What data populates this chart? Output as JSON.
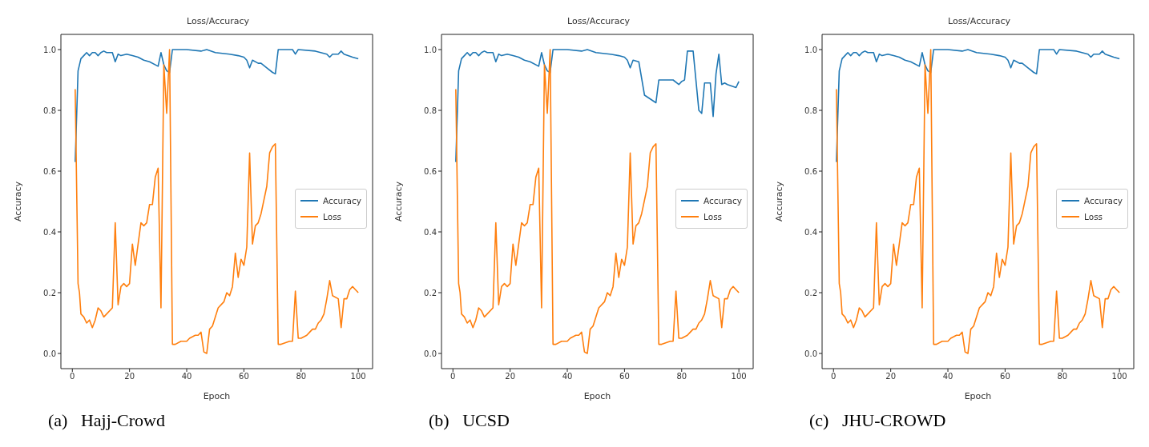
{
  "chart_data": [
    {
      "type": "line",
      "title": "Loss/Accuracy",
      "xlabel": "Epoch",
      "ylabel": "Accuracy",
      "legend": "right",
      "xlim": [
        -4,
        105
      ],
      "ylim": [
        -0.05,
        1.05
      ],
      "xticks": [
        0,
        20,
        40,
        60,
        80,
        100
      ],
      "yticks": [
        {
          "value": 0,
          "label": "0.0"
        },
        {
          "value": 0.2,
          "label": "0.2"
        },
        {
          "value": 0.4,
          "label": "0.4"
        },
        {
          "value": 0.6,
          "label": "0.6"
        },
        {
          "value": 0.8,
          "label": "0.8"
        },
        {
          "value": 1,
          "label": "1.0"
        }
      ],
      "annotations": [
        "(a)   Hajj-Crowd"
      ],
      "series": [
        {
          "name": "Accuracy",
          "color": "#1f77b4",
          "x": [
            1,
            2,
            3,
            4,
            5,
            6,
            7,
            8,
            9,
            10,
            11,
            12,
            14,
            15,
            16,
            17,
            19,
            21,
            23,
            25,
            27,
            30,
            31,
            32,
            33,
            34,
            35,
            40,
            45,
            47,
            50,
            55,
            58,
            60,
            61,
            62,
            63,
            65,
            66,
            68,
            70,
            71,
            72,
            77,
            78,
            79,
            85,
            89,
            90,
            91,
            93,
            94,
            95,
            98,
            100
          ],
          "values": [
            0.63,
            0.93,
            0.97,
            0.98,
            0.99,
            0.98,
            0.99,
            0.99,
            0.98,
            0.99,
            0.995,
            0.99,
            0.99,
            0.96,
            0.985,
            0.98,
            0.985,
            0.98,
            0.975,
            0.965,
            0.96,
            0.945,
            0.99,
            0.95,
            0.93,
            0.925,
            1.0,
            1.0,
            0.995,
            1.0,
            0.99,
            0.985,
            0.98,
            0.975,
            0.965,
            0.94,
            0.965,
            0.955,
            0.955,
            0.94,
            0.925,
            0.92,
            1.0,
            1.0,
            0.985,
            1.0,
            0.995,
            0.985,
            0.975,
            0.985,
            0.985,
            0.995,
            0.985,
            0.975,
            0.97
          ]
        },
        {
          "name": "Loss",
          "color": "#ff7f0e",
          "x": [
            1,
            2,
            2.5,
            3,
            4,
            5,
            6,
            7,
            8,
            9,
            10,
            11,
            12,
            14,
            15,
            16,
            17,
            18,
            19,
            20,
            21,
            22,
            23,
            24,
            25,
            26,
            27,
            28,
            29,
            30,
            31,
            32,
            33,
            34,
            35,
            36,
            38,
            40,
            41,
            43,
            44,
            45,
            46,
            47,
            48,
            49,
            51,
            53,
            54,
            55,
            56,
            57,
            58,
            59,
            60,
            61,
            62,
            63,
            64,
            65,
            66,
            68,
            69,
            70,
            71,
            72,
            73,
            76,
            77,
            78,
            79,
            80,
            82,
            83,
            84,
            85,
            86,
            87,
            88,
            89,
            90,
            91,
            93,
            94,
            95,
            96,
            97,
            98,
            99,
            100
          ],
          "values": [
            0.87,
            0.23,
            0.2,
            0.13,
            0.12,
            0.1,
            0.11,
            0.085,
            0.11,
            0.15,
            0.14,
            0.12,
            0.13,
            0.15,
            0.43,
            0.16,
            0.22,
            0.23,
            0.22,
            0.23,
            0.36,
            0.29,
            0.36,
            0.43,
            0.42,
            0.43,
            0.49,
            0.49,
            0.58,
            0.61,
            0.15,
            0.95,
            0.79,
            1.0,
            0.03,
            0.03,
            0.04,
            0.04,
            0.05,
            0.06,
            0.06,
            0.07,
            0.005,
            0.0,
            0.08,
            0.09,
            0.15,
            0.17,
            0.2,
            0.19,
            0.22,
            0.33,
            0.25,
            0.31,
            0.29,
            0.35,
            0.66,
            0.36,
            0.42,
            0.43,
            0.46,
            0.55,
            0.66,
            0.68,
            0.69,
            0.03,
            0.03,
            0.04,
            0.04,
            0.205,
            0.05,
            0.05,
            0.06,
            0.07,
            0.08,
            0.08,
            0.1,
            0.11,
            0.13,
            0.18,
            0.24,
            0.19,
            0.18,
            0.085,
            0.18,
            0.18,
            0.21,
            0.22,
            0.21,
            0.2
          ]
        }
      ]
    },
    {
      "type": "line",
      "title": "Loss/Accuracy",
      "xlabel": "Epoch",
      "ylabel": "Accuracy",
      "legend": "right",
      "xlim": [
        -4,
        105
      ],
      "ylim": [
        -0.05,
        1.05
      ],
      "xticks": [
        0,
        20,
        40,
        60,
        80,
        100
      ],
      "yticks": [
        {
          "value": 0,
          "label": "0.0"
        },
        {
          "value": 0.2,
          "label": "0.2"
        },
        {
          "value": 0.4,
          "label": "0.4"
        },
        {
          "value": 0.6,
          "label": "0.6"
        },
        {
          "value": 0.8,
          "label": "0.8"
        },
        {
          "value": 1,
          "label": "1.0"
        }
      ],
      "annotations": [
        "(b)   UCSD"
      ],
      "series": [
        {
          "name": "Accuracy",
          "color": "#1f77b4",
          "x": [
            1,
            2,
            3,
            4,
            5,
            6,
            7,
            8,
            9,
            10,
            11,
            12,
            14,
            15,
            16,
            17,
            19,
            21,
            23,
            25,
            27,
            30,
            31,
            32,
            33,
            34,
            35,
            40,
            45,
            47,
            50,
            55,
            58,
            60,
            61,
            62,
            63,
            65,
            67,
            71,
            72,
            77,
            79,
            80,
            81,
            82,
            84,
            86,
            87,
            88,
            90,
            91,
            92,
            93,
            94,
            95,
            96,
            99,
            100
          ],
          "values": [
            0.63,
            0.93,
            0.97,
            0.98,
            0.99,
            0.98,
            0.99,
            0.99,
            0.98,
            0.99,
            0.995,
            0.99,
            0.99,
            0.96,
            0.985,
            0.98,
            0.985,
            0.98,
            0.975,
            0.965,
            0.96,
            0.945,
            0.99,
            0.95,
            0.93,
            0.925,
            1.0,
            1.0,
            0.995,
            1.0,
            0.99,
            0.985,
            0.98,
            0.975,
            0.965,
            0.94,
            0.965,
            0.96,
            0.85,
            0.825,
            0.9,
            0.9,
            0.885,
            0.895,
            0.9,
            0.995,
            0.995,
            0.8,
            0.79,
            0.89,
            0.89,
            0.78,
            0.92,
            0.985,
            0.885,
            0.89,
            0.885,
            0.875,
            0.895
          ]
        },
        {
          "name": "Loss",
          "color": "#ff7f0e",
          "x": [
            1,
            2,
            2.5,
            3,
            4,
            5,
            6,
            7,
            8,
            9,
            10,
            11,
            12,
            14,
            15,
            16,
            17,
            18,
            19,
            20,
            21,
            22,
            23,
            24,
            25,
            26,
            27,
            28,
            29,
            30,
            31,
            32,
            33,
            34,
            35,
            36,
            38,
            40,
            41,
            43,
            44,
            45,
            46,
            47,
            48,
            49,
            51,
            53,
            54,
            55,
            56,
            57,
            58,
            59,
            60,
            61,
            62,
            63,
            64,
            65,
            66,
            68,
            69,
            70,
            71,
            72,
            73,
            76,
            77,
            78,
            79,
            80,
            82,
            83,
            84,
            85,
            86,
            87,
            88,
            89,
            90,
            91,
            93,
            94,
            95,
            96,
            97,
            98,
            99,
            100
          ],
          "values": [
            0.87,
            0.23,
            0.2,
            0.13,
            0.12,
            0.1,
            0.11,
            0.085,
            0.11,
            0.15,
            0.14,
            0.12,
            0.13,
            0.15,
            0.43,
            0.16,
            0.22,
            0.23,
            0.22,
            0.23,
            0.36,
            0.29,
            0.36,
            0.43,
            0.42,
            0.43,
            0.49,
            0.49,
            0.58,
            0.61,
            0.15,
            0.95,
            0.79,
            1.0,
            0.03,
            0.03,
            0.04,
            0.04,
            0.05,
            0.06,
            0.06,
            0.07,
            0.005,
            0.0,
            0.08,
            0.09,
            0.15,
            0.17,
            0.2,
            0.19,
            0.22,
            0.33,
            0.25,
            0.31,
            0.29,
            0.35,
            0.66,
            0.36,
            0.42,
            0.43,
            0.46,
            0.55,
            0.66,
            0.68,
            0.69,
            0.03,
            0.03,
            0.04,
            0.04,
            0.205,
            0.05,
            0.05,
            0.06,
            0.07,
            0.08,
            0.08,
            0.1,
            0.11,
            0.13,
            0.18,
            0.24,
            0.19,
            0.18,
            0.085,
            0.18,
            0.18,
            0.21,
            0.22,
            0.21,
            0.2
          ]
        }
      ]
    },
    {
      "type": "line",
      "title": "Loss/Accuracy",
      "xlabel": "Epoch",
      "ylabel": "Accuracy",
      "legend": "right",
      "xlim": [
        -4,
        105
      ],
      "ylim": [
        -0.05,
        1.05
      ],
      "xticks": [
        0,
        20,
        40,
        60,
        80,
        100
      ],
      "yticks": [
        {
          "value": 0,
          "label": "0.0"
        },
        {
          "value": 0.2,
          "label": "0.2"
        },
        {
          "value": 0.4,
          "label": "0.4"
        },
        {
          "value": 0.6,
          "label": "0.6"
        },
        {
          "value": 0.8,
          "label": "0.8"
        },
        {
          "value": 1,
          "label": "1.0"
        }
      ],
      "annotations": [
        "(c)   JHU-CROWD"
      ],
      "series": [
        {
          "name": "Accuracy",
          "color": "#1f77b4",
          "x": [
            1,
            2,
            3,
            4,
            5,
            6,
            7,
            8,
            9,
            10,
            11,
            12,
            14,
            15,
            16,
            17,
            19,
            21,
            23,
            25,
            27,
            30,
            31,
            32,
            33,
            34,
            35,
            40,
            45,
            47,
            50,
            55,
            58,
            60,
            61,
            62,
            63,
            65,
            66,
            68,
            70,
            71,
            72,
            77,
            78,
            79,
            85,
            89,
            90,
            91,
            93,
            94,
            95,
            98,
            100
          ],
          "values": [
            0.63,
            0.93,
            0.97,
            0.98,
            0.99,
            0.98,
            0.99,
            0.99,
            0.98,
            0.99,
            0.995,
            0.99,
            0.99,
            0.96,
            0.985,
            0.98,
            0.985,
            0.98,
            0.975,
            0.965,
            0.96,
            0.945,
            0.99,
            0.95,
            0.93,
            0.925,
            1.0,
            1.0,
            0.995,
            1.0,
            0.99,
            0.985,
            0.98,
            0.975,
            0.965,
            0.94,
            0.965,
            0.955,
            0.955,
            0.94,
            0.925,
            0.92,
            1.0,
            1.0,
            0.985,
            1.0,
            0.995,
            0.985,
            0.975,
            0.985,
            0.985,
            0.995,
            0.985,
            0.975,
            0.97
          ]
        },
        {
          "name": "Loss",
          "color": "#ff7f0e",
          "x": [
            1,
            2,
            2.5,
            3,
            4,
            5,
            6,
            7,
            8,
            9,
            10,
            11,
            12,
            14,
            15,
            16,
            17,
            18,
            19,
            20,
            21,
            22,
            23,
            24,
            25,
            26,
            27,
            28,
            29,
            30,
            31,
            32,
            33,
            34,
            35,
            36,
            38,
            40,
            41,
            43,
            44,
            45,
            46,
            47,
            48,
            49,
            51,
            53,
            54,
            55,
            56,
            57,
            58,
            59,
            60,
            61,
            62,
            63,
            64,
            65,
            66,
            68,
            69,
            70,
            71,
            72,
            73,
            76,
            77,
            78,
            79,
            80,
            82,
            83,
            84,
            85,
            86,
            87,
            88,
            89,
            90,
            91,
            93,
            94,
            95,
            96,
            97,
            98,
            99,
            100
          ],
          "values": [
            0.87,
            0.23,
            0.2,
            0.13,
            0.12,
            0.1,
            0.11,
            0.085,
            0.11,
            0.15,
            0.14,
            0.12,
            0.13,
            0.15,
            0.43,
            0.16,
            0.22,
            0.23,
            0.22,
            0.23,
            0.36,
            0.29,
            0.36,
            0.43,
            0.42,
            0.43,
            0.49,
            0.49,
            0.58,
            0.61,
            0.15,
            0.95,
            0.79,
            1.0,
            0.03,
            0.03,
            0.04,
            0.04,
            0.05,
            0.06,
            0.06,
            0.07,
            0.005,
            0.0,
            0.08,
            0.09,
            0.15,
            0.17,
            0.2,
            0.19,
            0.22,
            0.33,
            0.25,
            0.31,
            0.29,
            0.35,
            0.66,
            0.36,
            0.42,
            0.43,
            0.46,
            0.55,
            0.66,
            0.68,
            0.69,
            0.03,
            0.03,
            0.04,
            0.04,
            0.205,
            0.05,
            0.05,
            0.06,
            0.07,
            0.08,
            0.08,
            0.1,
            0.11,
            0.13,
            0.18,
            0.24,
            0.19,
            0.18,
            0.085,
            0.18,
            0.18,
            0.21,
            0.22,
            0.21,
            0.2
          ]
        }
      ]
    }
  ]
}
